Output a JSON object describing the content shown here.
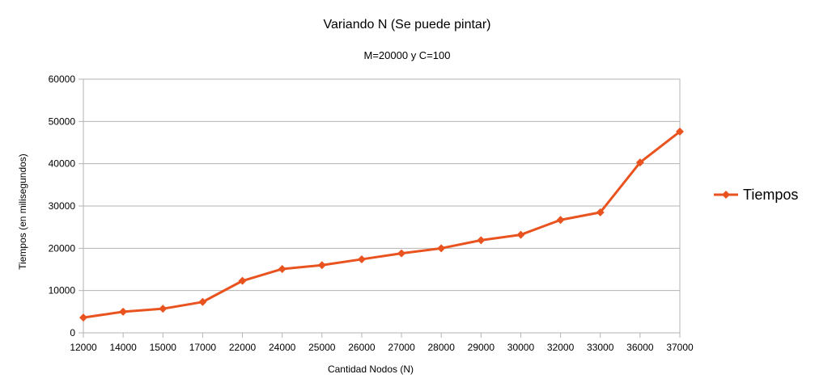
{
  "chart_data": {
    "type": "line",
    "title": "Variando N (Se puede pintar)",
    "subtitle": "M=20000 y C=100",
    "xlabel": "Cantidad Nodos (N)",
    "ylabel": "Tiempos (en milisegundos)",
    "categories": [
      "12000",
      "14000",
      "15000",
      "17000",
      "22000",
      "24000",
      "25000",
      "26000",
      "27000",
      "28000",
      "29000",
      "30000",
      "32000",
      "33000",
      "36000",
      "37000"
    ],
    "ylim": [
      0,
      60000
    ],
    "yticks": [
      0,
      10000,
      20000,
      30000,
      40000,
      50000,
      60000
    ],
    "grid": true,
    "legend_position": "right",
    "series": [
      {
        "name": "Tiempos",
        "color": "#e8531f",
        "marker": "diamond",
        "values": [
          3600,
          5000,
          5700,
          7300,
          12300,
          15100,
          16000,
          17400,
          18800,
          20000,
          21900,
          23200,
          26700,
          28500,
          40300,
          47600
        ]
      }
    ]
  }
}
